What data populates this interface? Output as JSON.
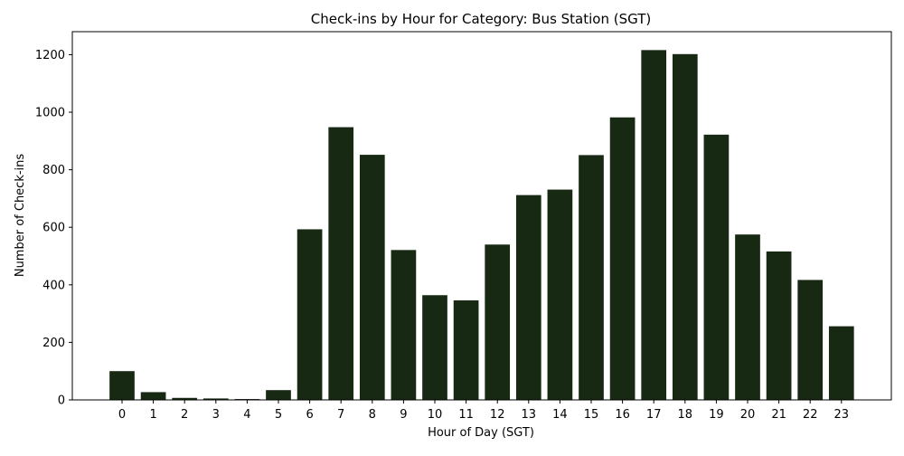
{
  "chart_data": {
    "type": "bar",
    "title": "Check-ins by Hour for Category: Bus Station (SGT)",
    "xlabel": "Hour of Day (SGT)",
    "ylabel": "Number of Check-ins",
    "categories": [
      "0",
      "1",
      "2",
      "3",
      "4",
      "5",
      "6",
      "7",
      "8",
      "9",
      "10",
      "11",
      "12",
      "13",
      "14",
      "15",
      "16",
      "17",
      "18",
      "19",
      "20",
      "21",
      "22",
      "23"
    ],
    "values": [
      100,
      27,
      7,
      5,
      3,
      34,
      593,
      948,
      852,
      521,
      364,
      346,
      540,
      712,
      731,
      851,
      982,
      1216,
      1202,
      922,
      575,
      516,
      417,
      256
    ],
    "ylim": [
      0,
      1280
    ],
    "yticks": [
      0,
      200,
      400,
      600,
      800,
      1000,
      1200
    ],
    "bar_color": "#172913",
    "grid": false,
    "legend": "none"
  }
}
